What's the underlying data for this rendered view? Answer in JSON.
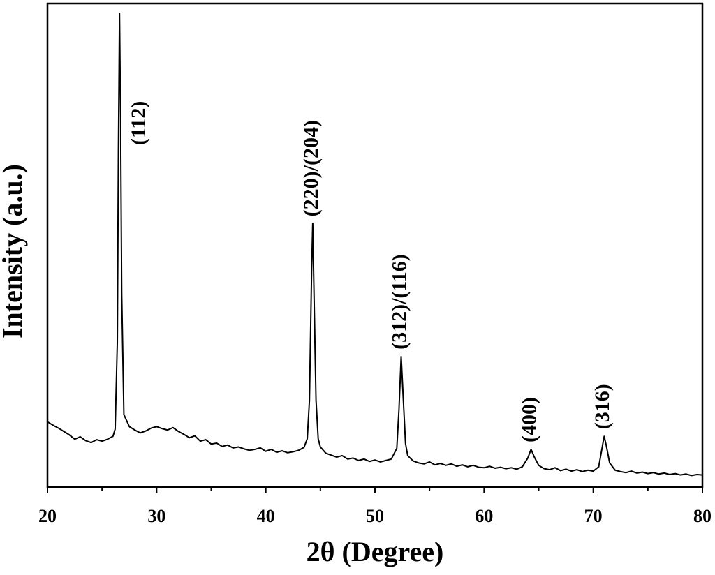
{
  "chart_data": {
    "type": "line",
    "x_label": "2θ (Degree)",
    "y_label": "Intensity (a.u.)",
    "color": "#000000",
    "xlim": [
      20,
      80
    ],
    "xticks": [
      20,
      30,
      40,
      50,
      60,
      70,
      80
    ],
    "ylim": [
      0,
      100
    ],
    "x": [
      20,
      20.5,
      21,
      21.5,
      22,
      22.5,
      23,
      23.5,
      24,
      24.5,
      25,
      25.5,
      26,
      26.2,
      26.4,
      26.5,
      26.6,
      26.7,
      26.8,
      27,
      27.5,
      28,
      28.5,
      29,
      29.5,
      30,
      30.5,
      31,
      31.5,
      32,
      32.5,
      33,
      33.5,
      34,
      34.5,
      35,
      35.5,
      36,
      36.5,
      37,
      37.5,
      38,
      38.5,
      39,
      39.5,
      40,
      40.5,
      41,
      41.5,
      42,
      42.5,
      43,
      43.5,
      43.8,
      44.0,
      44.2,
      44.3,
      44.4,
      44.6,
      44.8,
      45,
      45.5,
      46,
      46.5,
      47,
      47.5,
      48,
      48.5,
      49,
      49.5,
      50,
      50.5,
      51,
      51.5,
      52,
      52.2,
      52.4,
      52.6,
      52.8,
      53,
      53.5,
      54,
      54.5,
      55,
      55.5,
      56,
      56.5,
      57,
      57.5,
      58,
      58.5,
      59,
      59.5,
      60,
      60.5,
      61,
      61.5,
      62,
      62.5,
      63,
      63.5,
      64,
      64.3,
      64.6,
      65,
      65.5,
      66,
      66.5,
      67,
      67.5,
      68,
      68.5,
      69,
      69.5,
      70,
      70.5,
      70.8,
      71,
      71.2,
      71.5,
      72,
      72.5,
      73,
      73.5,
      74,
      74.5,
      75,
      75.5,
      76,
      76.5,
      77,
      77.5,
      78,
      78.5,
      79,
      79.5,
      80
    ],
    "values": [
      13.5,
      12.8,
      12.2,
      11.5,
      10.8,
      9.9,
      10.4,
      9.6,
      9.2,
      9.8,
      9.5,
      9.9,
      10.5,
      12,
      30,
      70,
      98,
      75,
      40,
      15,
      12.5,
      11.8,
      11.2,
      11.6,
      12.2,
      12.5,
      12.1,
      11.8,
      12.3,
      11.5,
      10.9,
      10.2,
      10.6,
      9.5,
      9.8,
      8.9,
      9.1,
      8.4,
      8.7,
      8.1,
      8.3,
      7.9,
      7.6,
      7.8,
      8.1,
      7.4,
      7.8,
      7.2,
      7.5,
      7.1,
      7.3,
      7.6,
      8.2,
      10,
      18,
      45,
      54.5,
      42,
      18,
      10,
      8.3,
      7.0,
      6.6,
      6.2,
      6.5,
      5.8,
      6.0,
      5.5,
      5.8,
      5.3,
      5.6,
      5.2,
      5.5,
      5.8,
      8,
      16,
      27,
      18,
      9,
      6.5,
      5.4,
      5.0,
      4.8,
      5.2,
      4.6,
      4.9,
      4.5,
      4.8,
      4.3,
      4.6,
      4.2,
      4.5,
      4.1,
      4.0,
      4.3,
      3.9,
      4.1,
      3.8,
      4.0,
      3.7,
      4.2,
      6.0,
      7.8,
      6.2,
      4.5,
      3.8,
      3.6,
      4.0,
      3.4,
      3.7,
      3.3,
      3.6,
      3.2,
      3.5,
      3.3,
      4.2,
      8,
      10.5,
      8.5,
      5,
      3.5,
      3.2,
      3.0,
      3.3,
      2.9,
      3.1,
      2.8,
      3.0,
      2.7,
      2.9,
      2.6,
      2.8,
      2.5,
      2.7,
      2.4,
      2.6,
      2.5
    ],
    "annotations": [
      {
        "text": "(112)",
        "x": 26.6
      },
      {
        "text": "(220)/(204)",
        "x": 44.3
      },
      {
        "text": "(312)/(116)",
        "x": 52.4
      },
      {
        "text": "(400)",
        "x": 64.3
      },
      {
        "text": "(316)",
        "x": 71
      }
    ]
  }
}
